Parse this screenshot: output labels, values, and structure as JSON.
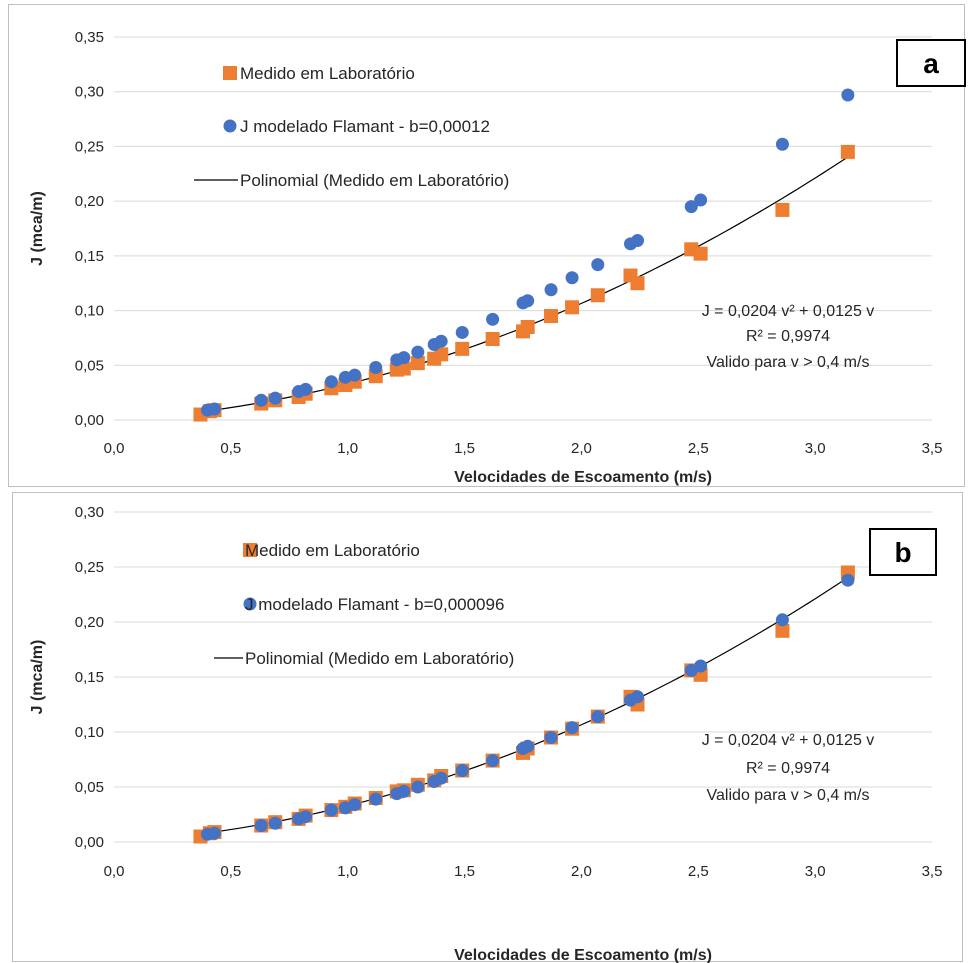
{
  "chart_data": [
    {
      "type": "scatter",
      "panel_label": "a",
      "xlabel": "Velocidades de Escoamento (m/s)",
      "ylabel": "J (mca/m)",
      "xlim": [
        0,
        3.5
      ],
      "ylim": [
        0,
        0.35
      ],
      "x_ticks": [
        "0,0",
        "0,5",
        "1,0",
        "1,5",
        "2,0",
        "2,5",
        "3,0",
        "3,5"
      ],
      "y_ticks": [
        "0,00",
        "0,05",
        "0,10",
        "0,15",
        "0,20",
        "0,25",
        "0,30",
        "0,35"
      ],
      "grid": "horizontal",
      "legend_position": "top-left",
      "series": [
        {
          "name": "Medido em Laboratório",
          "marker": "square",
          "color": "#ED7D31",
          "x": [
            0.37,
            0.41,
            0.43,
            0.63,
            0.69,
            0.79,
            0.82,
            0.93,
            0.99,
            1.03,
            1.12,
            1.21,
            1.24,
            1.3,
            1.37,
            1.4,
            1.49,
            1.62,
            1.75,
            1.77,
            1.87,
            1.96,
            2.07,
            2.21,
            2.24,
            2.47,
            2.51,
            2.86,
            3.14
          ],
          "y": [
            0.005,
            0.008,
            0.009,
            0.015,
            0.018,
            0.021,
            0.024,
            0.029,
            0.032,
            0.035,
            0.04,
            0.046,
            0.047,
            0.052,
            0.056,
            0.06,
            0.065,
            0.074,
            0.081,
            0.085,
            0.095,
            0.103,
            0.114,
            0.132,
            0.125,
            0.156,
            0.152,
            0.192,
            0.245
          ]
        },
        {
          "name": "J modelado Flamant - b=0,00012",
          "marker": "circle",
          "color": "#4472C4",
          "x": [
            0.4,
            0.43,
            0.63,
            0.69,
            0.79,
            0.82,
            0.93,
            0.99,
            1.03,
            1.12,
            1.21,
            1.24,
            1.3,
            1.37,
            1.4,
            1.49,
            1.62,
            1.75,
            1.77,
            1.87,
            1.96,
            2.07,
            2.21,
            2.24,
            2.47,
            2.51,
            2.86,
            3.14
          ],
          "y": [
            0.009,
            0.01,
            0.018,
            0.02,
            0.026,
            0.028,
            0.035,
            0.039,
            0.041,
            0.048,
            0.055,
            0.057,
            0.062,
            0.069,
            0.072,
            0.08,
            0.092,
            0.107,
            0.109,
            0.119,
            0.13,
            0.142,
            0.161,
            0.164,
            0.195,
            0.201,
            0.252,
            0.297
          ]
        },
        {
          "name": "Polinomial (Medido em Laboratório)",
          "type": "line",
          "color": "#000000",
          "equation": {
            "a": 0.0204,
            "b": 0.0125
          },
          "x_range": [
            0.37,
            3.14
          ]
        }
      ],
      "annotations": [
        "J = 0,0204 v² + 0,0125 v",
        "R² = 0,9974",
        "Valido para v > 0,4 m/s"
      ]
    },
    {
      "type": "scatter",
      "panel_label": "b",
      "xlabel": "Velocidades de Escoamento (m/s)",
      "ylabel": "J (mca/m)",
      "xlim": [
        0,
        3.5
      ],
      "ylim": [
        0,
        0.3
      ],
      "x_ticks": [
        "0,0",
        "0,5",
        "1,0",
        "1,5",
        "2,0",
        "2,5",
        "3,0",
        "3,5"
      ],
      "y_ticks": [
        "0,00",
        "0,05",
        "0,10",
        "0,15",
        "0,20",
        "0,25",
        "0,30"
      ],
      "grid": "horizontal",
      "legend_position": "top-left",
      "series": [
        {
          "name": "Medido em Laboratório",
          "marker": "square",
          "color": "#ED7D31",
          "x": [
            0.37,
            0.41,
            0.43,
            0.63,
            0.69,
            0.79,
            0.82,
            0.93,
            0.99,
            1.03,
            1.12,
            1.21,
            1.24,
            1.3,
            1.37,
            1.4,
            1.49,
            1.62,
            1.75,
            1.77,
            1.87,
            1.96,
            2.07,
            2.21,
            2.24,
            2.47,
            2.51,
            2.86,
            3.14
          ],
          "y": [
            0.005,
            0.008,
            0.009,
            0.015,
            0.018,
            0.021,
            0.024,
            0.029,
            0.032,
            0.035,
            0.04,
            0.046,
            0.047,
            0.052,
            0.056,
            0.06,
            0.065,
            0.074,
            0.081,
            0.085,
            0.095,
            0.103,
            0.114,
            0.132,
            0.125,
            0.156,
            0.152,
            0.192,
            0.245
          ]
        },
        {
          "name": "J modelado Flamant - b=0,000096",
          "marker": "circle",
          "color": "#4472C4",
          "x": [
            0.4,
            0.43,
            0.63,
            0.69,
            0.79,
            0.82,
            0.93,
            0.99,
            1.03,
            1.12,
            1.21,
            1.24,
            1.3,
            1.37,
            1.4,
            1.49,
            1.62,
            1.75,
            1.77,
            1.87,
            1.96,
            2.07,
            2.21,
            2.24,
            2.47,
            2.51,
            2.86,
            3.14
          ],
          "y": [
            0.007,
            0.008,
            0.015,
            0.017,
            0.021,
            0.023,
            0.029,
            0.031,
            0.034,
            0.039,
            0.044,
            0.046,
            0.05,
            0.055,
            0.058,
            0.065,
            0.074,
            0.085,
            0.087,
            0.095,
            0.104,
            0.114,
            0.129,
            0.132,
            0.156,
            0.16,
            0.202,
            0.238
          ]
        },
        {
          "name": "Polinomial (Medido em Laboratório)",
          "type": "line",
          "color": "#000000",
          "equation": {
            "a": 0.0204,
            "b": 0.0125
          },
          "x_range": [
            0.37,
            3.14
          ]
        }
      ],
      "annotations": [
        "J = 0,0204 v² + 0,0125 v",
        "R² = 0,9974",
        "Valido para v > 0,4 m/s"
      ]
    }
  ]
}
